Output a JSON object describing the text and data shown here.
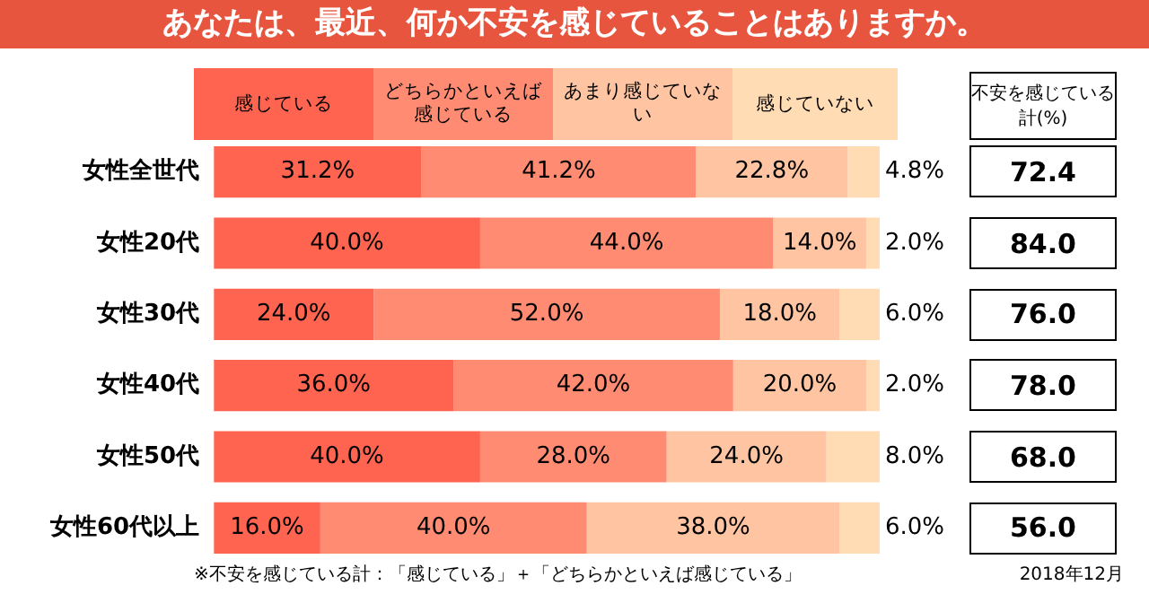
{
  "chart_data": [
    {
      "type": "bar",
      "orientation": "horizontal",
      "stacked": true,
      "title": "あなたは、最近、何か不安を感じていることはありますか。",
      "categories": [
        "女性全世代",
        "女性20代",
        "女性30代",
        "女性40代",
        "女性50代",
        "女性60代以上"
      ],
      "series": [
        {
          "name": "感じている",
          "color": "#ff6450",
          "values": [
            31.2,
            40.0,
            24.0,
            36.0,
            40.0,
            16.0
          ],
          "value_labels": [
            "31.2%",
            "40.0%",
            "24.0%",
            "36.0%",
            "40.0%",
            "16.0%"
          ]
        },
        {
          "name": "どちらかといえば感じている",
          "color": "#ff8c72",
          "values": [
            41.2,
            44.0,
            52.0,
            42.0,
            28.0,
            40.0
          ],
          "value_labels": [
            "41.2%",
            "44.0%",
            "52.0%",
            "42.0%",
            "28.0%",
            "40.0%"
          ]
        },
        {
          "name": "あまり感じていない",
          "color": "#ffc5a2",
          "values": [
            22.8,
            14.0,
            18.0,
            20.0,
            24.0,
            38.0
          ],
          "value_labels": [
            "22.8%",
            "14.0%",
            "18.0%",
            "20.0%",
            "24.0%",
            "38.0%"
          ]
        },
        {
          "name": "感じていない",
          "color": "#ffdcb4",
          "values": [
            4.8,
            2.0,
            6.0,
            2.0,
            8.0,
            6.0
          ],
          "value_labels": [
            "4.8%",
            "2.0%",
            "6.0%",
            "2.0%",
            "8.0%",
            "6.0%"
          ]
        }
      ],
      "xlim": [
        0,
        100
      ],
      "legend": "top",
      "grid": false,
      "tick_labels": "y",
      "annotations": [
        "※不安を感じている計：「感じている」＋「どちらかといえば感じている」",
        "2018年12月"
      ]
    },
    {
      "type": "other",
      "title": "不安を感じている計(%)",
      "value_labels": [
        "72.4",
        "84.0",
        "76.0",
        "78.0",
        "68.0",
        "56.0"
      ]
    }
  ]
}
